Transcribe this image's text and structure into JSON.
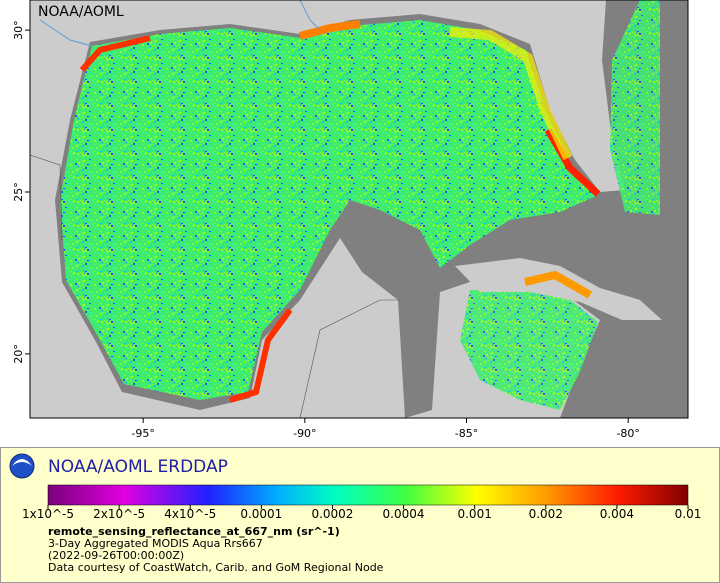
{
  "map": {
    "watermark": "NOAA/AOML",
    "xlim": [
      -98.5,
      -78.15
    ],
    "ylim": [
      18.02,
      30.93
    ],
    "xticks": [
      {
        "value": -95,
        "label": "-95°"
      },
      {
        "value": -90,
        "label": "-90°"
      },
      {
        "value": -85,
        "label": "-85°"
      },
      {
        "value": -80,
        "label": "-80°"
      }
    ],
    "yticks": [
      {
        "value": 20,
        "label": "20°"
      },
      {
        "value": 25,
        "label": "25°"
      },
      {
        "value": 30,
        "label": "30°"
      }
    ]
  },
  "legend": {
    "title": "NOAA/AOML ERDDAP",
    "colorbar_ticks": [
      {
        "value": 1e-05,
        "label": "1x10^-5"
      },
      {
        "value": 2e-05,
        "label": "2x10^-5"
      },
      {
        "value": 4e-05,
        "label": "4x10^-5"
      },
      0.0001,
      0.0002,
      0.0004,
      0.001,
      0.002,
      0.004,
      0.01
    ],
    "variable": "remote_sensing_reflectance_at_667_nm (sr^-1)",
    "dataset": "3-Day Aggregated MODIS Aqua Rrs667",
    "time": "(2022-09-26T00:00:00Z)",
    "credit": "Data courtesy of CoastWatch, Carib. and GoM Regional Node"
  }
}
